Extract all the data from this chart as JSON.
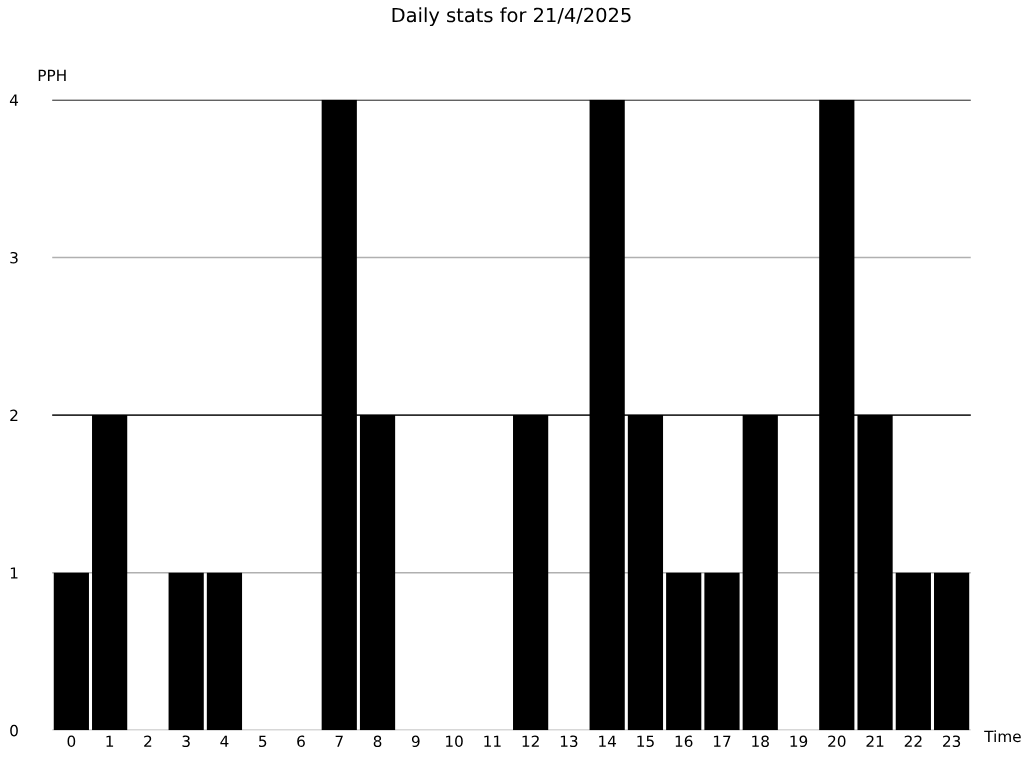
{
  "chart_data": {
    "type": "bar",
    "title": "Daily stats for 21/4/2025",
    "xlabel": "Time",
    "ylabel": "PPH",
    "categories": [
      "0",
      "1",
      "2",
      "3",
      "4",
      "5",
      "6",
      "7",
      "8",
      "9",
      "10",
      "11",
      "12",
      "13",
      "14",
      "15",
      "16",
      "17",
      "18",
      "19",
      "20",
      "21",
      "22",
      "23"
    ],
    "values": [
      1,
      2,
      0,
      1,
      1,
      0,
      0,
      4,
      2,
      0,
      0,
      0,
      2,
      0,
      4,
      2,
      1,
      1,
      2,
      0,
      4,
      2,
      1,
      1
    ],
    "color": "#000000",
    "ylim": [
      0,
      4
    ],
    "yticks": [
      0,
      1,
      2,
      3,
      4
    ],
    "grid": "y",
    "ref_lines": [
      {
        "axis": "y",
        "value": 2,
        "color": "#000000"
      },
      {
        "axis": "y",
        "value": 4,
        "color": "#000000"
      }
    ]
  }
}
